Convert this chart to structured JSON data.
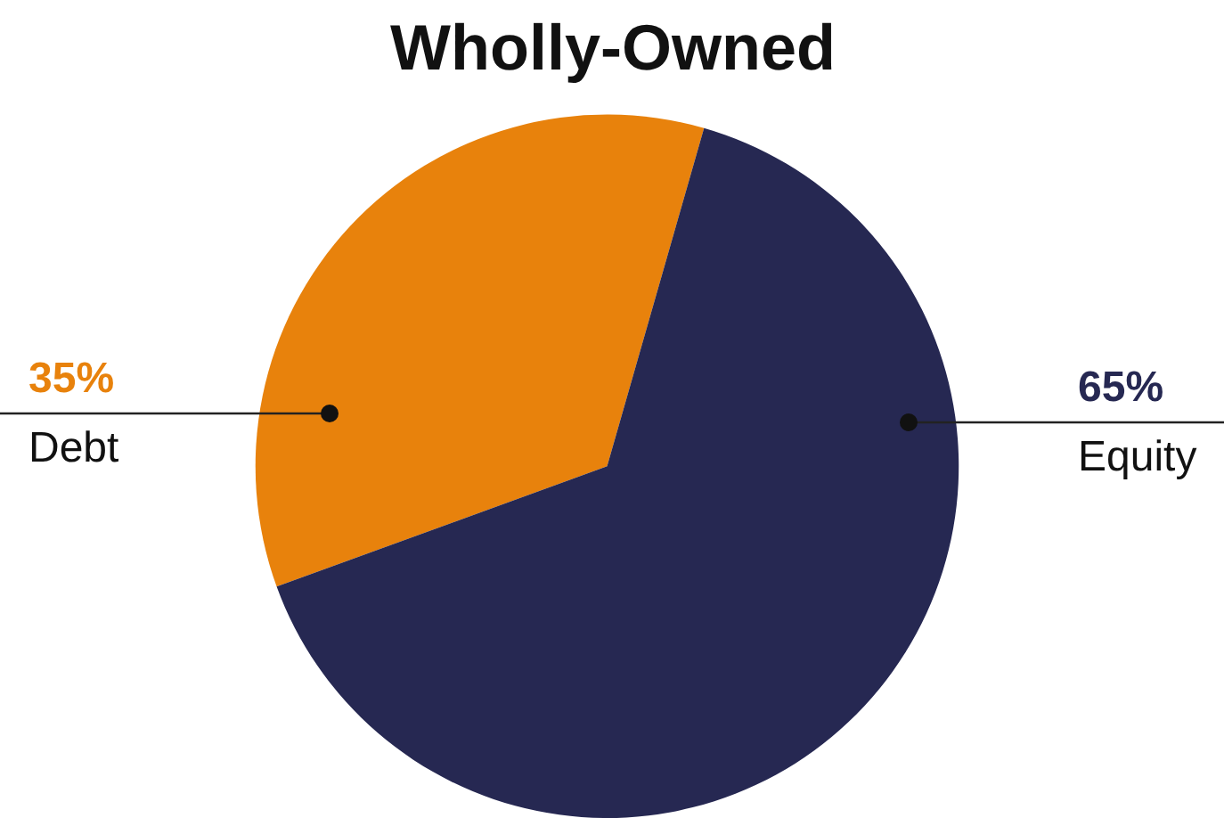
{
  "chart_data": {
    "type": "pie",
    "title": "Wholly-Owned",
    "categories": [
      "Debt",
      "Equity"
    ],
    "values": [
      35,
      65
    ],
    "colors": [
      "#e8820c",
      "#262852"
    ],
    "value_labels": [
      "35%",
      "65%"
    ],
    "legend": false
  }
}
